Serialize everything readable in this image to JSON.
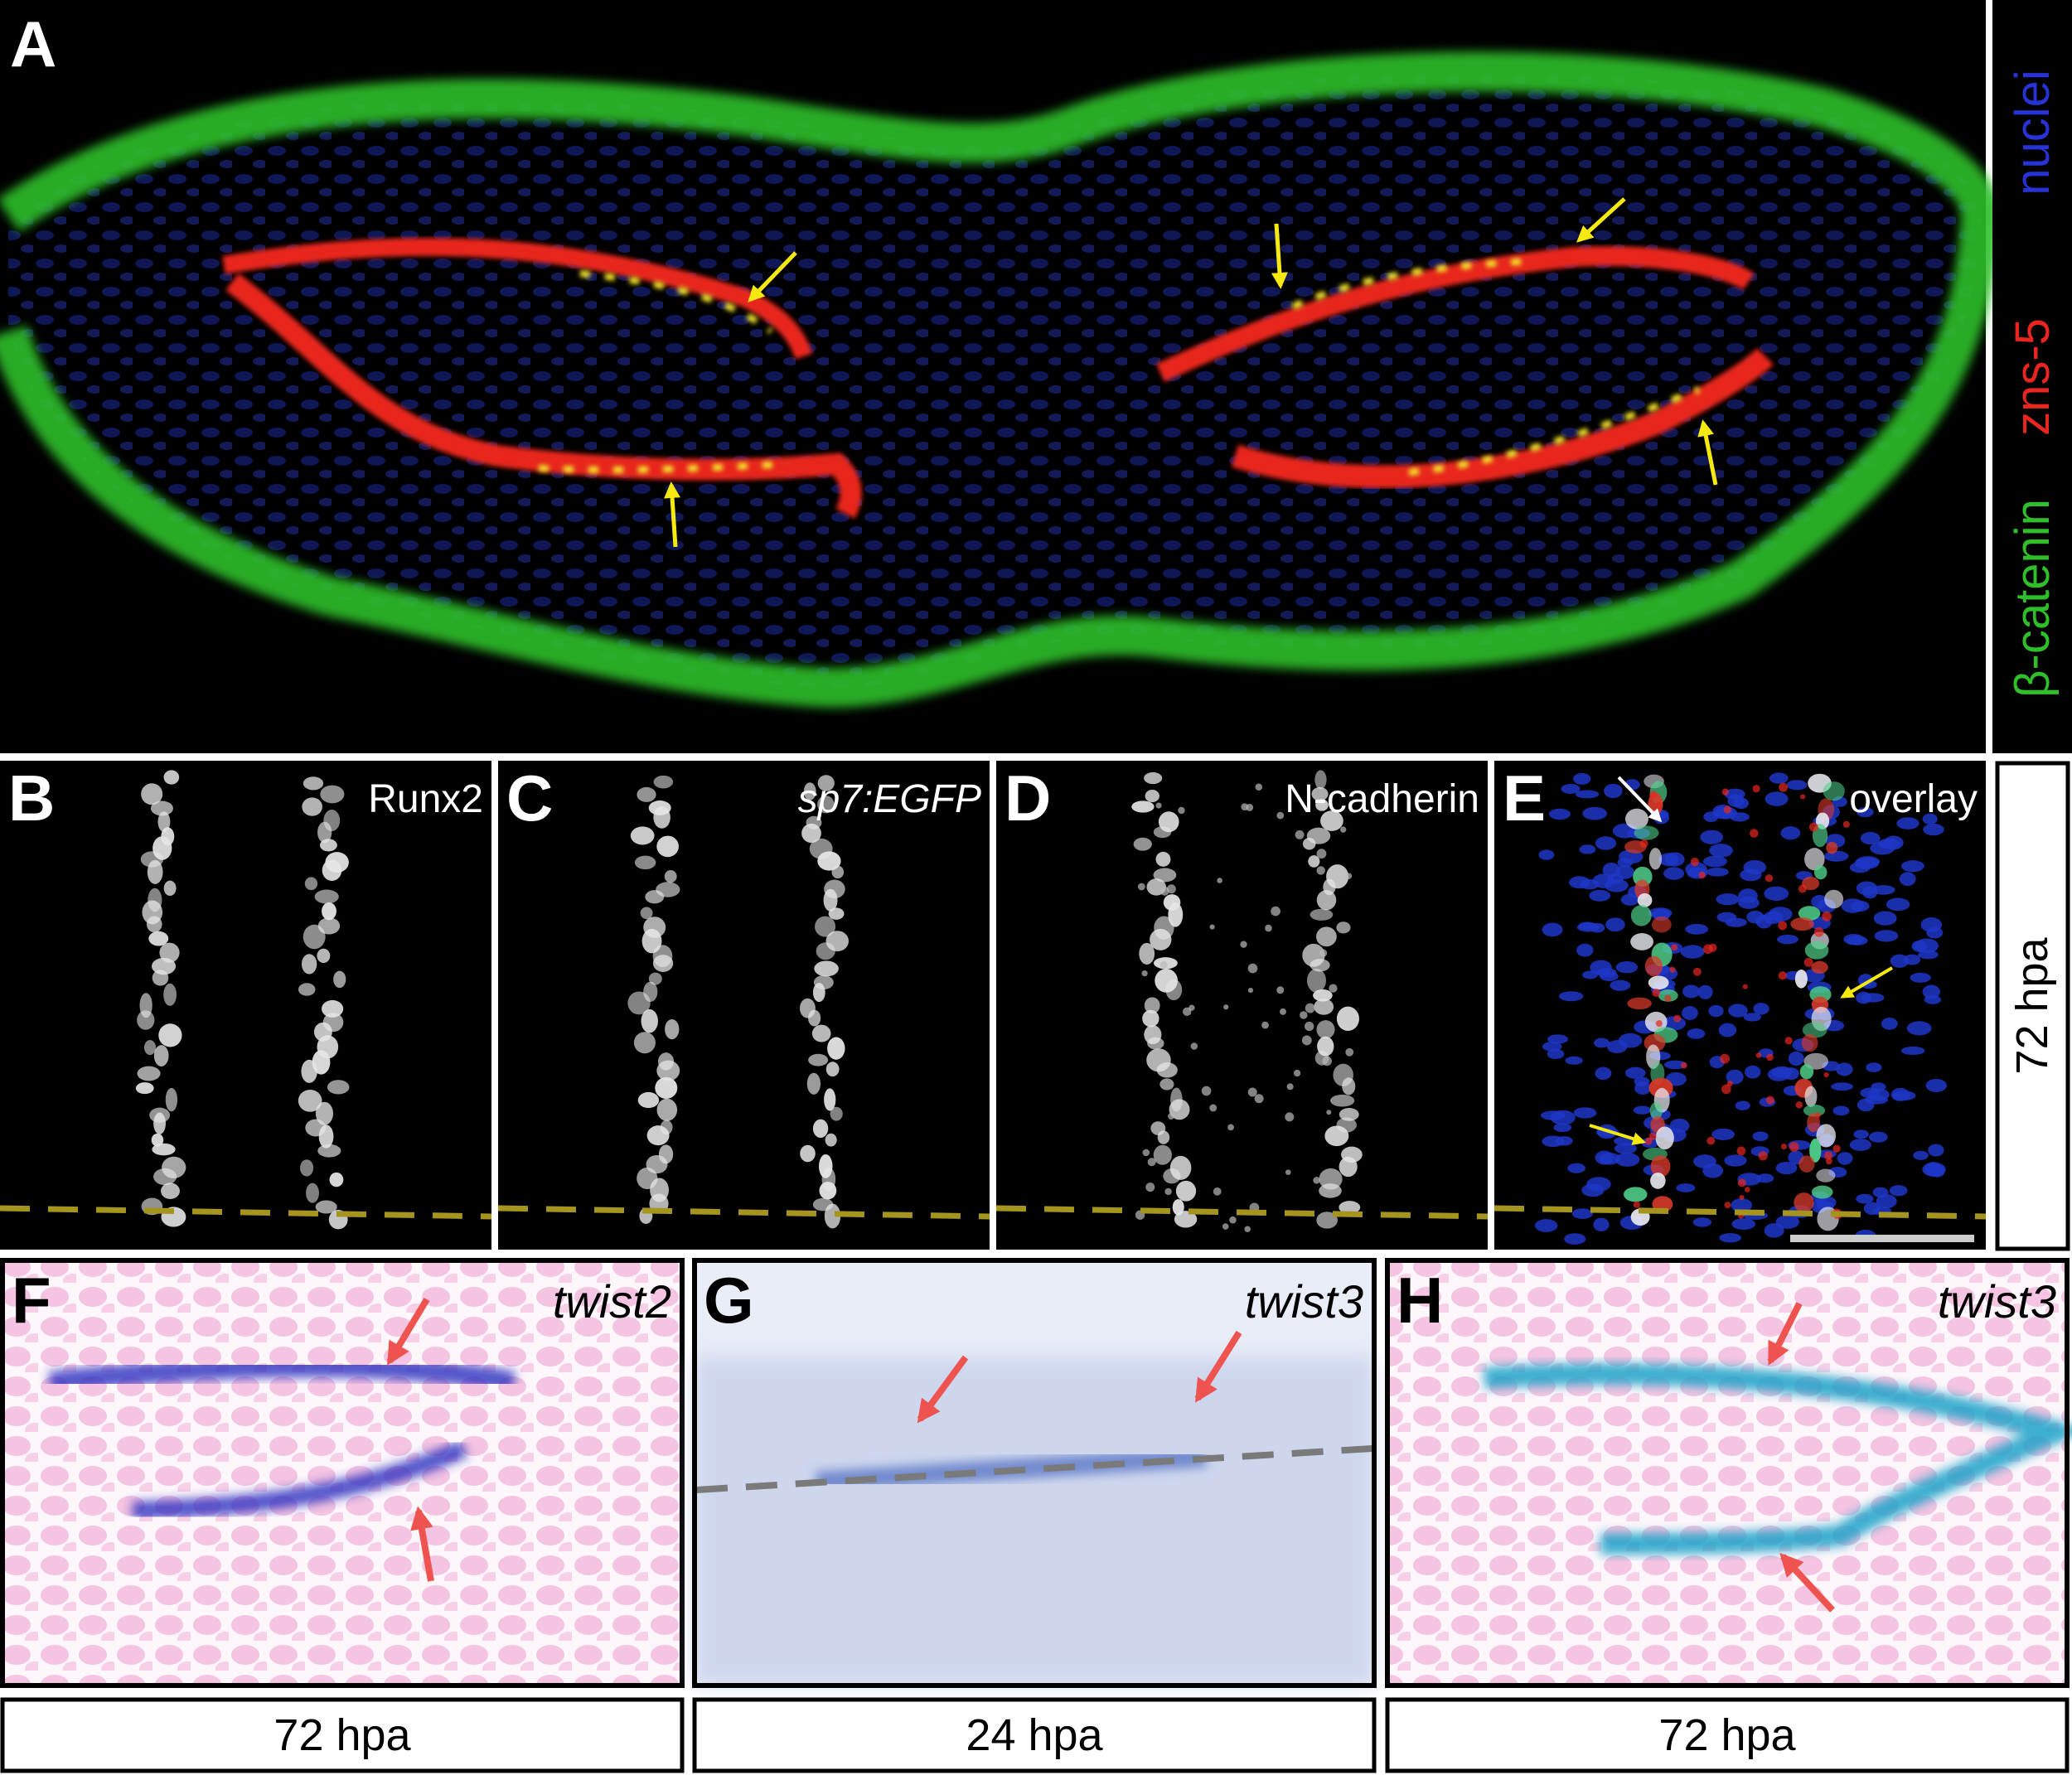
{
  "panel_a": {
    "label": "A",
    "legend": [
      "nuclei",
      "zns-5",
      "β-catenin"
    ]
  },
  "row_be": {
    "panels": [
      {
        "label": "B",
        "marker": "Runx2"
      },
      {
        "label": "C",
        "marker": "sp7:EGFP"
      },
      {
        "label": "D",
        "marker": "N-cadherin"
      },
      {
        "label": "E",
        "marker": "overlay"
      }
    ],
    "side_label": "72 hpa"
  },
  "row_fh": {
    "panels": [
      {
        "label": "F",
        "gene": "twist2",
        "caption": "72 hpa"
      },
      {
        "label": "G",
        "gene": "twist3",
        "caption": "24 hpa"
      },
      {
        "label": "H",
        "gene": "twist3",
        "caption": "72 hpa"
      }
    ]
  }
}
